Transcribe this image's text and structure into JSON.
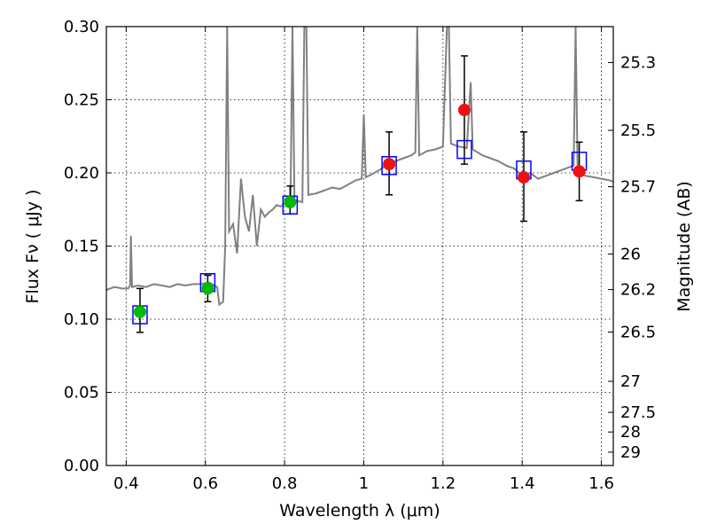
{
  "chart_data": {
    "type": "scatter",
    "xlabel": "Wavelength  λ (μm)",
    "ylabel": "Flux  Fν  ( μJy )",
    "y2label": "Magnitude (AB)",
    "xlim": [
      0.35,
      1.63
    ],
    "ylim": [
      0.0,
      0.3
    ],
    "grid": true,
    "x_ticks": [
      0.4,
      0.6,
      0.8,
      1.0,
      1.2,
      1.4,
      1.6
    ],
    "x_tick_labels": [
      "0.4",
      "0.6",
      "0.8",
      "1",
      "1.2",
      "1.4",
      "1.6"
    ],
    "y_ticks": [
      0.0,
      0.05,
      0.1,
      0.15,
      0.2,
      0.25,
      0.3
    ],
    "y_tick_labels": [
      "0.00",
      "0.05",
      "0.10",
      "0.15",
      "0.20",
      "0.25",
      "0.30"
    ],
    "y2_ticks": [
      {
        "label": "25.3",
        "value": 25.3
      },
      {
        "label": "25.5",
        "value": 25.5
      },
      {
        "label": "25.7",
        "value": 25.7
      },
      {
        "label": "26",
        "value": 26.0
      },
      {
        "label": "26.2",
        "value": 26.2
      },
      {
        "label": "26.5",
        "value": 26.5
      },
      {
        "label": "27",
        "value": 27.0
      },
      {
        "label": "27.5",
        "value": 27.5
      },
      {
        "label": "28",
        "value": 28.0
      },
      {
        "label": "29",
        "value": 29.0
      }
    ],
    "model_spectrum": {
      "color": "#808080",
      "points": [
        [
          0.35,
          0.12
        ],
        [
          0.37,
          0.122
        ],
        [
          0.39,
          0.121
        ],
        [
          0.405,
          0.121
        ],
        [
          0.41,
          0.123
        ],
        [
          0.412,
          0.157
        ],
        [
          0.415,
          0.122
        ],
        [
          0.43,
          0.123
        ],
        [
          0.45,
          0.122
        ],
        [
          0.47,
          0.124
        ],
        [
          0.49,
          0.123
        ],
        [
          0.51,
          0.122
        ],
        [
          0.53,
          0.124
        ],
        [
          0.55,
          0.123
        ],
        [
          0.57,
          0.124
        ],
        [
          0.59,
          0.124
        ],
        [
          0.61,
          0.125
        ],
        [
          0.63,
          0.122
        ],
        [
          0.635,
          0.11
        ],
        [
          0.645,
          0.112
        ],
        [
          0.65,
          0.15
        ],
        [
          0.655,
          0.3
        ],
        [
          0.66,
          0.16
        ],
        [
          0.67,
          0.165
        ],
        [
          0.68,
          0.145
        ],
        [
          0.69,
          0.196
        ],
        [
          0.7,
          0.17
        ],
        [
          0.71,
          0.16
        ],
        [
          0.72,
          0.185
        ],
        [
          0.73,
          0.15
        ],
        [
          0.74,
          0.175
        ],
        [
          0.75,
          0.17
        ],
        [
          0.76,
          0.173
        ],
        [
          0.77,
          0.175
        ],
        [
          0.78,
          0.178
        ],
        [
          0.79,
          0.177
        ],
        [
          0.8,
          0.179
        ],
        [
          0.81,
          0.18
        ],
        [
          0.815,
          0.18
        ],
        [
          0.82,
          0.3
        ],
        [
          0.825,
          0.179
        ],
        [
          0.83,
          0.181
        ],
        [
          0.845,
          0.18
        ],
        [
          0.85,
          0.3
        ],
        [
          0.855,
          0.3
        ],
        [
          0.86,
          0.185
        ],
        [
          0.88,
          0.186
        ],
        [
          0.9,
          0.188
        ],
        [
          0.92,
          0.19
        ],
        [
          0.94,
          0.189
        ],
        [
          0.96,
          0.192
        ],
        [
          0.98,
          0.195
        ],
        [
          0.995,
          0.196
        ],
        [
          1.0,
          0.24
        ],
        [
          1.005,
          0.197
        ],
        [
          1.02,
          0.199
        ],
        [
          1.04,
          0.202
        ],
        [
          1.06,
          0.206
        ],
        [
          1.08,
          0.208
        ],
        [
          1.1,
          0.21
        ],
        [
          1.12,
          0.212
        ],
        [
          1.13,
          0.214
        ],
        [
          1.135,
          0.3
        ],
        [
          1.14,
          0.212
        ],
        [
          1.16,
          0.215
        ],
        [
          1.18,
          0.216
        ],
        [
          1.2,
          0.218
        ],
        [
          1.21,
          0.3
        ],
        [
          1.215,
          0.3
        ],
        [
          1.22,
          0.22
        ],
        [
          1.24,
          0.218
        ],
        [
          1.26,
          0.217
        ],
        [
          1.27,
          0.262
        ],
        [
          1.275,
          0.216
        ],
        [
          1.3,
          0.212
        ],
        [
          1.32,
          0.21
        ],
        [
          1.34,
          0.208
        ],
        [
          1.36,
          0.205
        ],
        [
          1.38,
          0.203
        ],
        [
          1.4,
          0.198
        ],
        [
          1.42,
          0.2
        ],
        [
          1.44,
          0.196
        ],
        [
          1.46,
          0.198
        ],
        [
          1.48,
          0.2
        ],
        [
          1.5,
          0.202
        ],
        [
          1.52,
          0.204
        ],
        [
          1.53,
          0.205
        ],
        [
          1.535,
          0.3
        ],
        [
          1.54,
          0.2
        ],
        [
          1.56,
          0.198
        ],
        [
          1.58,
          0.197
        ],
        [
          1.6,
          0.196
        ],
        [
          1.62,
          0.195
        ],
        [
          1.63,
          0.194
        ]
      ]
    },
    "model_photometry": {
      "marker": "open-square",
      "color": "#0000ff",
      "points": [
        {
          "x": 0.435,
          "y": 0.103
        },
        {
          "x": 0.606,
          "y": 0.125
        },
        {
          "x": 0.814,
          "y": 0.178
        },
        {
          "x": 1.064,
          "y": 0.205
        },
        {
          "x": 1.254,
          "y": 0.216
        },
        {
          "x": 1.404,
          "y": 0.202
        },
        {
          "x": 1.544,
          "y": 0.208
        }
      ]
    },
    "observed_photometry": [
      {
        "x": 0.435,
        "y": 0.105,
        "yerr": [
          0.014,
          0.016
        ],
        "color": "#00bb00"
      },
      {
        "x": 0.606,
        "y": 0.121,
        "yerr": [
          0.009,
          0.009
        ],
        "color": "#00bb00"
      },
      {
        "x": 0.814,
        "y": 0.18,
        "yerr": [
          0.008,
          0.011
        ],
        "color": "#00bb00"
      },
      {
        "x": 1.064,
        "y": 0.206,
        "yerr": [
          0.021,
          0.022
        ],
        "color": "#ee1111"
      },
      {
        "x": 1.254,
        "y": 0.243,
        "yerr": [
          0.037,
          0.037
        ],
        "color": "#ee1111"
      },
      {
        "x": 1.404,
        "y": 0.197,
        "yerr": [
          0.03,
          0.031
        ],
        "color": "#ee1111"
      },
      {
        "x": 1.544,
        "y": 0.201,
        "yerr": [
          0.02,
          0.02
        ],
        "color": "#ee1111"
      }
    ]
  }
}
